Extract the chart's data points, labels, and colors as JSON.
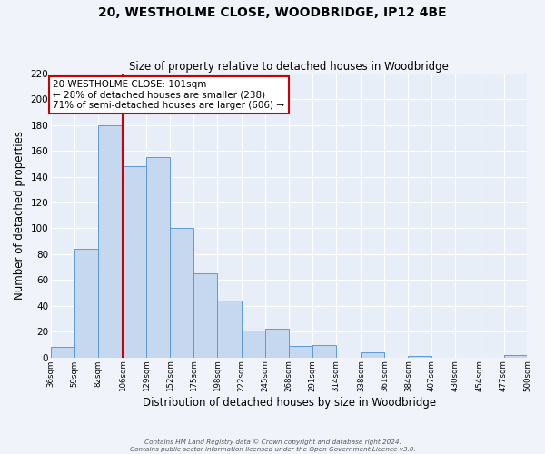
{
  "title1": "20, WESTHOLME CLOSE, WOODBRIDGE, IP12 4BE",
  "title2": "Size of property relative to detached houses in Woodbridge",
  "xlabel": "Distribution of detached houses by size in Woodbridge",
  "ylabel": "Number of detached properties",
  "footer1": "Contains HM Land Registry data © Crown copyright and database right 2024.",
  "footer2": "Contains public sector information licensed under the Open Government Licence v3.0.",
  "bar_edges": [
    36,
    59,
    82,
    106,
    129,
    152,
    175,
    198,
    222,
    245,
    268,
    291,
    314,
    338,
    361,
    384,
    407,
    430,
    454,
    477,
    500
  ],
  "bar_heights": [
    8,
    84,
    180,
    148,
    155,
    100,
    65,
    44,
    21,
    22,
    9,
    10,
    0,
    4,
    0,
    1,
    0,
    0,
    0,
    2
  ],
  "bar_color": "#c5d8f0",
  "bar_edge_color": "#5b9bd5",
  "vline_x": 106,
  "vline_color": "#cc0000",
  "annotation_title": "20 WESTHOLME CLOSE: 101sqm",
  "annotation_line1": "← 28% of detached houses are smaller (238)",
  "annotation_line2": "71% of semi-detached houses are larger (606) →",
  "annotation_box_color": "#ffffff",
  "annotation_box_edge": "#cc0000",
  "ylim": [
    0,
    220
  ],
  "yticks": [
    0,
    20,
    40,
    60,
    80,
    100,
    120,
    140,
    160,
    180,
    200,
    220
  ],
  "background_color": "#f0f4fa",
  "plot_bg_color": "#e8eef8"
}
